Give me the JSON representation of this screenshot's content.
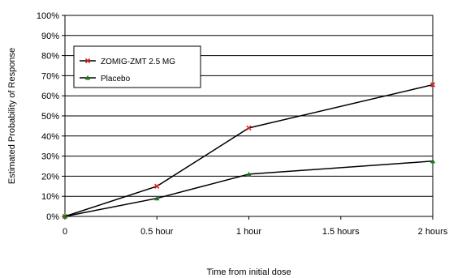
{
  "chart_data": {
    "type": "line",
    "title": "",
    "xlabel": "Time from initial dose",
    "ylabel": "Estimated Probability of Response",
    "x": [
      0,
      0.5,
      1,
      1.5,
      2
    ],
    "x_tick_labels": [
      "0",
      "0.5 hour",
      "1 hour",
      "1.5 hours",
      "2 hours"
    ],
    "xlim": [
      0,
      2
    ],
    "ylim": [
      0,
      100
    ],
    "y_ticks": [
      0,
      10,
      20,
      30,
      40,
      50,
      60,
      70,
      80,
      90,
      100
    ],
    "y_tick_labels": [
      "0%",
      "10%",
      "20%",
      "30%",
      "40%",
      "50%",
      "60%",
      "70%",
      "80%",
      "90%",
      "100%"
    ],
    "grid": "horizontal",
    "legend_position": "top-left, inside plot",
    "series": [
      {
        "name": "ZOMIG-ZMT 2.5 MG",
        "x": [
          0,
          0.5,
          1,
          2
        ],
        "values": [
          0,
          15,
          44,
          65.5
        ],
        "line_color": "#000000",
        "marker_color": "#e02020",
        "marker": "x"
      },
      {
        "name": "Placebo",
        "x": [
          0,
          0.5,
          1,
          2
        ],
        "values": [
          0,
          9,
          21,
          27.5
        ],
        "line_color": "#000000",
        "marker_color": "#1a7a1a",
        "marker": "triangle"
      }
    ]
  }
}
